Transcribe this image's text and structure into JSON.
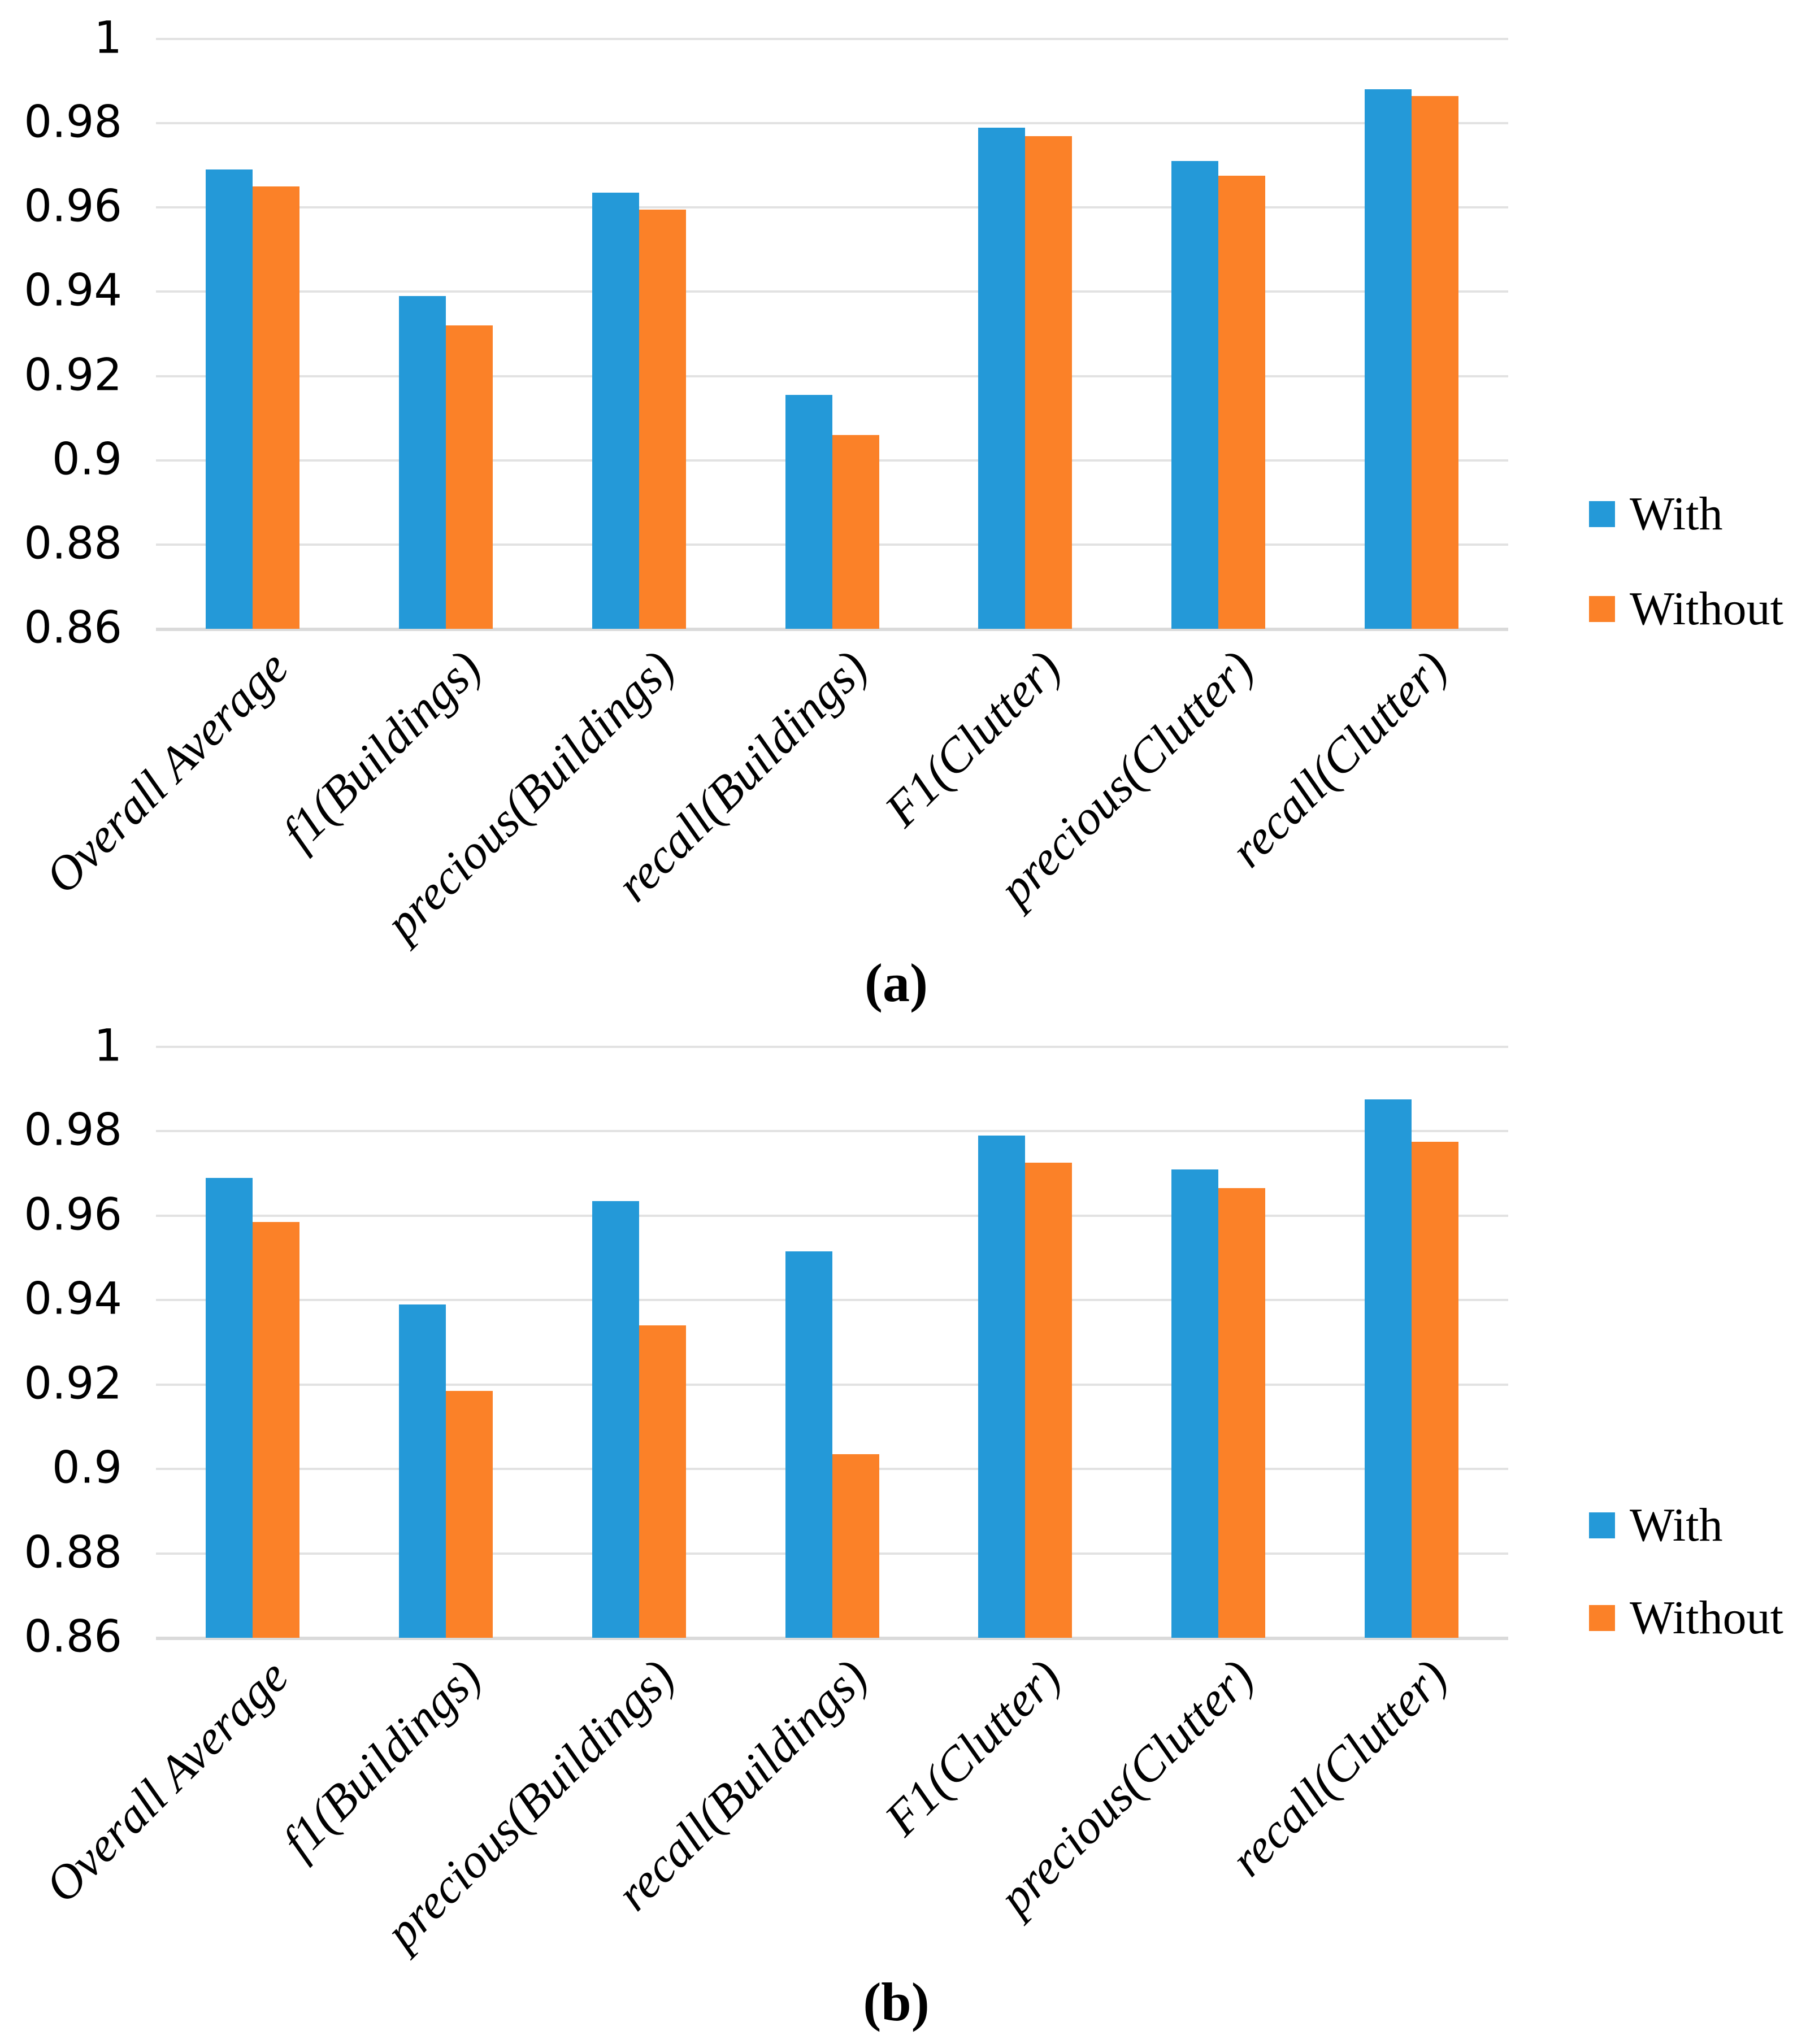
{
  "colors": {
    "with_series": "#2499D8",
    "without_series": "#FB8128",
    "gridline": "#E2E2E2",
    "axis_line": "#DADADA",
    "text": "#000000",
    "background": "#FFFFFF"
  },
  "chart_data": [
    {
      "id": "a",
      "type": "bar",
      "caption": "(a)",
      "title": "",
      "xlabel": "",
      "ylabel": "",
      "categories": [
        "Overall Average",
        "f1(Buildings)",
        "precious(Buildings)",
        "recall(Buildings)",
        "F1(Clutter)",
        "precious(Clutter)",
        "recall(Clutter)"
      ],
      "series": [
        {
          "name": "With",
          "color": "#2499D8",
          "values": [
            0.969,
            0.939,
            0.9635,
            0.9155,
            0.979,
            0.971,
            0.988
          ]
        },
        {
          "name": "Without",
          "color": "#FB8128",
          "values": [
            0.965,
            0.932,
            0.9595,
            0.906,
            0.977,
            0.9675,
            0.9865
          ]
        }
      ],
      "ylim": [
        0.86,
        1.0
      ],
      "ytick_values": [
        1,
        0.98,
        0.96,
        0.94,
        0.92,
        0.9,
        0.88,
        0.86
      ],
      "ytick_labels": [
        "1",
        "0.98",
        "0.96",
        "0.94",
        "0.92",
        "0.9",
        "0.88",
        "0.86"
      ],
      "grid": true,
      "legend_position": "right"
    },
    {
      "id": "b",
      "type": "bar",
      "caption": "(b)",
      "title": "",
      "xlabel": "",
      "ylabel": "",
      "categories": [
        "Overall Average",
        "f1(Buildings)",
        "precious(Buildings)",
        "recall(Buildings)",
        "F1(Clutter)",
        "precious(Clutter)",
        "recall(Clutter)"
      ],
      "series": [
        {
          "name": "With",
          "color": "#2499D8",
          "values": [
            0.969,
            0.939,
            0.9635,
            0.9515,
            0.979,
            0.971,
            0.9875
          ]
        },
        {
          "name": "Without",
          "color": "#FB8128",
          "values": [
            0.9585,
            0.9185,
            0.934,
            0.9035,
            0.9725,
            0.9665,
            0.9775
          ]
        }
      ],
      "ylim": [
        0.86,
        1.0
      ],
      "ytick_values": [
        1,
        0.98,
        0.96,
        0.94,
        0.92,
        0.9,
        0.88,
        0.86
      ],
      "ytick_labels": [
        "1",
        "0.98",
        "0.96",
        "0.94",
        "0.92",
        "0.9",
        "0.88",
        "0.86"
      ],
      "grid": true,
      "legend_position": "right"
    }
  ]
}
